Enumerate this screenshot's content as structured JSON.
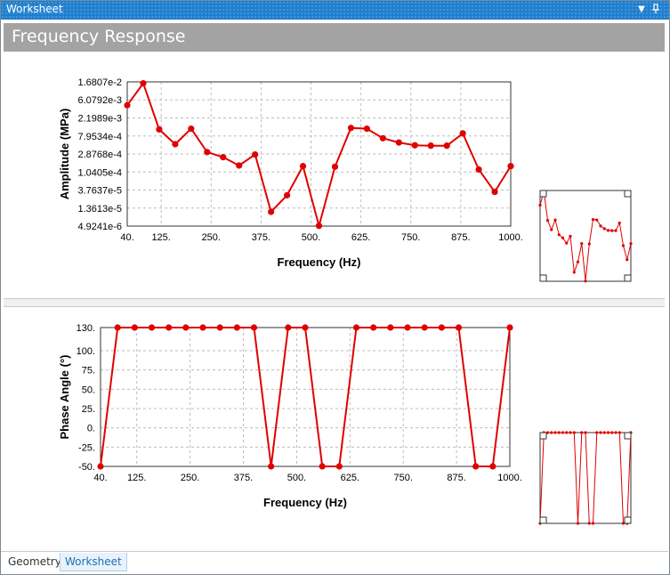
{
  "window": {
    "title": "Worksheet",
    "dropdown_icon": "chevron-down-icon",
    "pin_icon": "pin-icon"
  },
  "header": {
    "title": "Frequency Response"
  },
  "tabs": [
    {
      "label": "Geometry",
      "active": false
    },
    {
      "label": "Worksheet",
      "active": true
    }
  ],
  "colors": {
    "series": "#e00000",
    "title_bar": "#1f7fcf",
    "header": "#a3a3a3"
  },
  "chart_data": [
    {
      "type": "line",
      "xlabel": "Frequency (Hz)",
      "ylabel": "Amplitude (MPa)",
      "y_scale": "log",
      "xlim": [
        40,
        1000
      ],
      "x_ticks": [
        "40.",
        "125.",
        "250.",
        "375.",
        "500.",
        "625.",
        "750.",
        "875.",
        "1000."
      ],
      "x_tick_values": [
        40,
        125,
        250,
        375,
        500,
        625,
        750,
        875,
        1000
      ],
      "y_ticks": [
        "1.6807e-2",
        "6.0792e-3",
        "2.1989e-3",
        "7.9534e-4",
        "2.8768e-4",
        "1.0405e-4",
        "3.7637e-5",
        "1.3613e-5",
        "4.9241e-6"
      ],
      "y_tick_values": [
        0.016807,
        0.0060792,
        0.0021989,
        0.00079534,
        0.00028768,
        0.00010405,
        3.7637e-05,
        1.3613e-05,
        4.9241e-06
      ],
      "grid": true,
      "series": [
        {
          "x": [
            40,
            80,
            120,
            160,
            200,
            240,
            280,
            320,
            360,
            400,
            440,
            480,
            520,
            560,
            600,
            640,
            680,
            720,
            760,
            800,
            840,
            880,
            920,
            960,
            1000
          ],
          "y": [
            0.0045,
            0.0155,
            0.00115,
            0.0005,
            0.0012,
            0.00032,
            0.00024,
            0.00015,
            0.00028,
            1.1e-05,
            2.8e-05,
            0.000145,
            5e-06,
            0.00014,
            0.00125,
            0.0012,
            0.0007,
            0.00055,
            0.00047,
            0.00046,
            0.00046,
            0.00092,
            0.00012,
            3.4e-05,
            0.000145
          ]
        }
      ]
    },
    {
      "type": "line",
      "xlabel": "Frequency (Hz)",
      "ylabel": "Phase Angle (°)",
      "xlim": [
        40,
        1000
      ],
      "ylim": [
        -50,
        130
      ],
      "x_ticks": [
        "40.",
        "125.",
        "250.",
        "375.",
        "500.",
        "625.",
        "750.",
        "875.",
        "1000."
      ],
      "x_tick_values": [
        40,
        125,
        250,
        375,
        500,
        625,
        750,
        875,
        1000
      ],
      "y_ticks": [
        "130.",
        "100.",
        "75.",
        "50.",
        "25.",
        "0.",
        "-25.",
        "-50."
      ],
      "y_tick_values": [
        130,
        100,
        75,
        50,
        25,
        0,
        -25,
        -50
      ],
      "grid": true,
      "series": [
        {
          "x": [
            40,
            80,
            120,
            160,
            200,
            240,
            280,
            320,
            360,
            400,
            440,
            480,
            520,
            560,
            600,
            640,
            680,
            720,
            760,
            800,
            840,
            880,
            920,
            960,
            1000
          ],
          "y": [
            -50,
            130,
            130,
            130,
            130,
            130,
            130,
            130,
            130,
            130,
            -50,
            130,
            130,
            -50,
            -50,
            130,
            130,
            130,
            130,
            130,
            130,
            130,
            -50,
            -50,
            130
          ]
        }
      ]
    }
  ]
}
